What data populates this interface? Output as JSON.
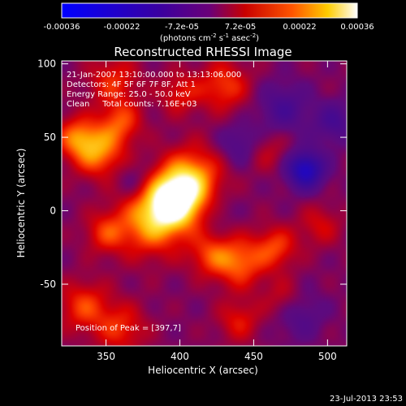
{
  "chart_data": {
    "type": "heatmap",
    "title": "Reconstructed RHESSI Image",
    "xlabel": "Heliocentric X (arcsec)",
    "ylabel": "Heliocentric Y (arcsec)",
    "xlim": [
      320,
      513
    ],
    "ylim": [
      -92,
      102
    ],
    "xticks": [
      350,
      400,
      450,
      500
    ],
    "yticks": [
      100,
      50,
      0,
      -50
    ],
    "colorbar": {
      "ticks": [
        "-0.00036",
        "-0.00022",
        "-7.2e-05",
        "7.2e-05",
        "0.00022",
        "0.00036"
      ],
      "unit_prefix": "(photons cm",
      "unit_sup1": "-2",
      "unit_mid": " s",
      "unit_sup2": "-1",
      "unit_mid2": " asec",
      "unit_sup3": "-2",
      "unit_suffix": ")",
      "range": [
        -0.00036,
        0.00036
      ]
    },
    "annotations": [
      "21-Jan-2007 13:10:00.000 to 13:13:06.000",
      "Detectors: 4F 5F 6F 7F 8F, Att 1",
      "Energy Range: 25.0 - 50.0 keV",
      "Clean     Total counts: 7.16E+03"
    ],
    "peak_label": "Position of Peak = [397,7]",
    "peak": {
      "x": 397,
      "y": 7
    },
    "blobs": [
      {
        "x": 397,
        "y": 8,
        "amp": 1.0,
        "s": 14
      },
      {
        "x": 380,
        "y": -8,
        "amp": 0.55,
        "s": 16
      },
      {
        "x": 410,
        "y": 25,
        "amp": 0.45,
        "s": 14
      },
      {
        "x": 345,
        "y": 40,
        "amp": 0.55,
        "s": 12
      },
      {
        "x": 330,
        "y": 50,
        "amp": 0.45,
        "s": 10
      },
      {
        "x": 360,
        "y": 60,
        "amp": 0.4,
        "s": 10
      },
      {
        "x": 355,
        "y": 88,
        "amp": 0.35,
        "s": 12
      },
      {
        "x": 430,
        "y": 85,
        "amp": 0.4,
        "s": 12
      },
      {
        "x": 400,
        "y": 80,
        "amp": 0.3,
        "s": 10
      },
      {
        "x": 440,
        "y": -35,
        "amp": 0.5,
        "s": 12
      },
      {
        "x": 465,
        "y": -25,
        "amp": 0.4,
        "s": 10
      },
      {
        "x": 420,
        "y": -30,
        "amp": 0.35,
        "s": 10
      },
      {
        "x": 350,
        "y": -15,
        "amp": 0.35,
        "s": 10
      },
      {
        "x": 335,
        "y": -65,
        "amp": 0.4,
        "s": 12
      },
      {
        "x": 360,
        "y": -80,
        "amp": 0.35,
        "s": 12
      },
      {
        "x": 440,
        "y": -75,
        "amp": 0.3,
        "s": 10
      },
      {
        "x": 470,
        "y": -60,
        "amp": 0.25,
        "s": 10
      },
      {
        "x": 495,
        "y": -10,
        "amp": 0.25,
        "s": 10
      },
      {
        "x": 460,
        "y": 40,
        "amp": 0.2,
        "s": 10
      },
      {
        "x": 485,
        "y": 28,
        "amp": -0.7,
        "s": 9
      },
      {
        "x": 470,
        "y": 70,
        "amp": -0.3,
        "s": 12
      },
      {
        "x": 505,
        "y": 60,
        "amp": -0.3,
        "s": 10
      },
      {
        "x": 440,
        "y": 45,
        "amp": -0.25,
        "s": 10
      },
      {
        "x": 480,
        "y": -70,
        "amp": -0.25,
        "s": 12
      },
      {
        "x": 370,
        "y": 20,
        "amp": -0.2,
        "s": 9
      },
      {
        "x": 425,
        "y": 0,
        "amp": -0.1,
        "s": 9
      }
    ]
  },
  "footer_timestamp": "23-Jul-2013 23:53"
}
